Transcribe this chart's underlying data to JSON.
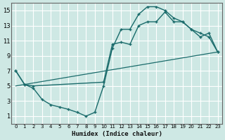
{
  "background_color": "#cee8e4",
  "grid_color": "#b8d8d4",
  "line_color": "#1a6b6b",
  "xlabel": "Humidex (Indice chaleur)",
  "xlim": [
    -0.5,
    23.5
  ],
  "ylim": [
    0,
    16
  ],
  "xticks": [
    0,
    1,
    2,
    3,
    4,
    5,
    6,
    7,
    8,
    9,
    10,
    11,
    12,
    13,
    14,
    15,
    16,
    17,
    18,
    19,
    20,
    21,
    22,
    23
  ],
  "yticks": [
    1,
    3,
    5,
    7,
    9,
    11,
    13,
    15
  ],
  "line1_x": [
    0,
    1,
    2,
    3,
    4,
    5,
    6,
    7,
    8,
    9,
    10,
    11,
    12,
    13,
    14,
    15,
    16,
    17,
    18,
    19,
    20,
    21,
    22,
    23
  ],
  "line1_y": [
    7.0,
    5.2,
    4.7,
    3.2,
    2.5,
    2.2,
    1.9,
    1.5,
    1.0,
    1.5,
    5.0,
    10.0,
    12.5,
    12.5,
    14.5,
    15.5,
    15.5,
    15.0,
    14.0,
    13.5,
    12.5,
    12.0,
    11.5,
    9.5
  ],
  "line2_x": [
    0,
    23
  ],
  "line2_y": [
    5.0,
    9.5
  ],
  "line3_x": [
    0,
    1,
    2,
    10,
    11,
    12,
    13,
    14,
    15,
    16,
    17,
    18,
    19,
    20,
    21,
    22,
    23
  ],
  "line3_y": [
    7.0,
    5.2,
    5.0,
    5.5,
    10.5,
    10.8,
    10.5,
    13.0,
    13.5,
    13.5,
    14.8,
    13.5,
    13.5,
    12.5,
    11.5,
    12.0,
    9.5
  ]
}
